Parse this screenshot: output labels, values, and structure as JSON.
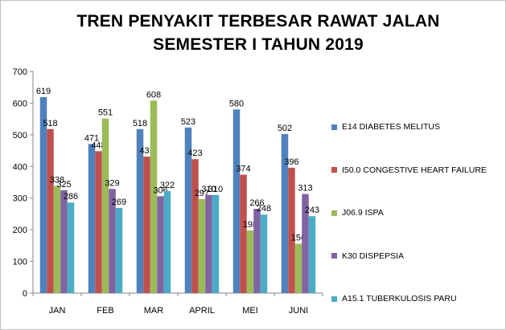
{
  "chart_data": {
    "type": "bar",
    "title_line1": "TREN PENYAKIT TERBESAR RAWAT JALAN",
    "title_line2": "SEMESTER I TAHUN 2019",
    "categories": [
      "JAN",
      "FEB",
      "MAR",
      "APRIL",
      "MEI",
      "JUNI"
    ],
    "ylim": [
      0,
      700
    ],
    "yticks": [
      0,
      100,
      200,
      300,
      400,
      500,
      600,
      700
    ],
    "grid": false,
    "legend_position": "right",
    "series": [
      {
        "name": "E14 DIABETES  MELITUS",
        "color": "#4F81BD",
        "values": [
          619,
          471,
          518,
          523,
          580,
          502
        ]
      },
      {
        "name": "I50.0 CONGESTIVE  HEART FAILURE",
        "color": "#C0504D",
        "values": [
          518,
          448,
          431,
          423,
          374,
          396
        ]
      },
      {
        "name": "J06.9 ISPA",
        "color": "#9BBB59",
        "values": [
          338,
          551,
          608,
          297,
          198,
          156
        ]
      },
      {
        "name": "K30 DISPEPSIA",
        "color": "#8064A2",
        "values": [
          325,
          329,
          306,
          310,
          266,
          313
        ]
      },
      {
        "name": "A15.1 TUBERKULOSIS  PARU",
        "color": "#4BACC6",
        "values": [
          286,
          269,
          322,
          310,
          248,
          243
        ]
      }
    ]
  }
}
